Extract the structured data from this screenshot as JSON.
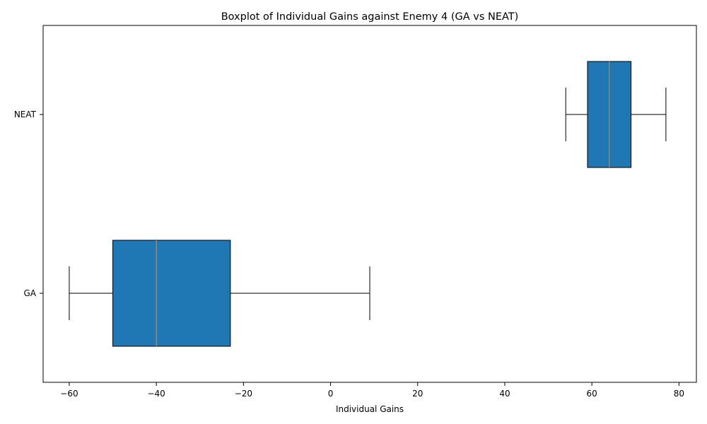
{
  "chart_data": {
    "type": "boxplot",
    "orientation": "horizontal",
    "title": "Boxplot of Individual Gains against Enemy 4 (GA vs NEAT)",
    "xlabel": "Individual Gains",
    "ylabel": "",
    "xlim": [
      -66,
      84
    ],
    "x_ticks": [
      -60,
      -40,
      -20,
      0,
      20,
      40,
      60,
      80
    ],
    "x_tick_labels": [
      "−60",
      "−40",
      "−20",
      "0",
      "20",
      "40",
      "60",
      "80"
    ],
    "categories": [
      "GA",
      "NEAT"
    ],
    "grid": false,
    "boxes": [
      {
        "label": "GA",
        "whisker_low": -60,
        "q1": -50,
        "median": -40,
        "q3": -23,
        "whisker_high": 9
      },
      {
        "label": "NEAT",
        "whisker_low": 54,
        "q1": 59,
        "median": 64,
        "q3": 69,
        "whisker_high": 77
      }
    ],
    "colors": {
      "box_fill": "#1f77b4",
      "median_line": "#ff7f0e",
      "edge": "#000000"
    }
  }
}
